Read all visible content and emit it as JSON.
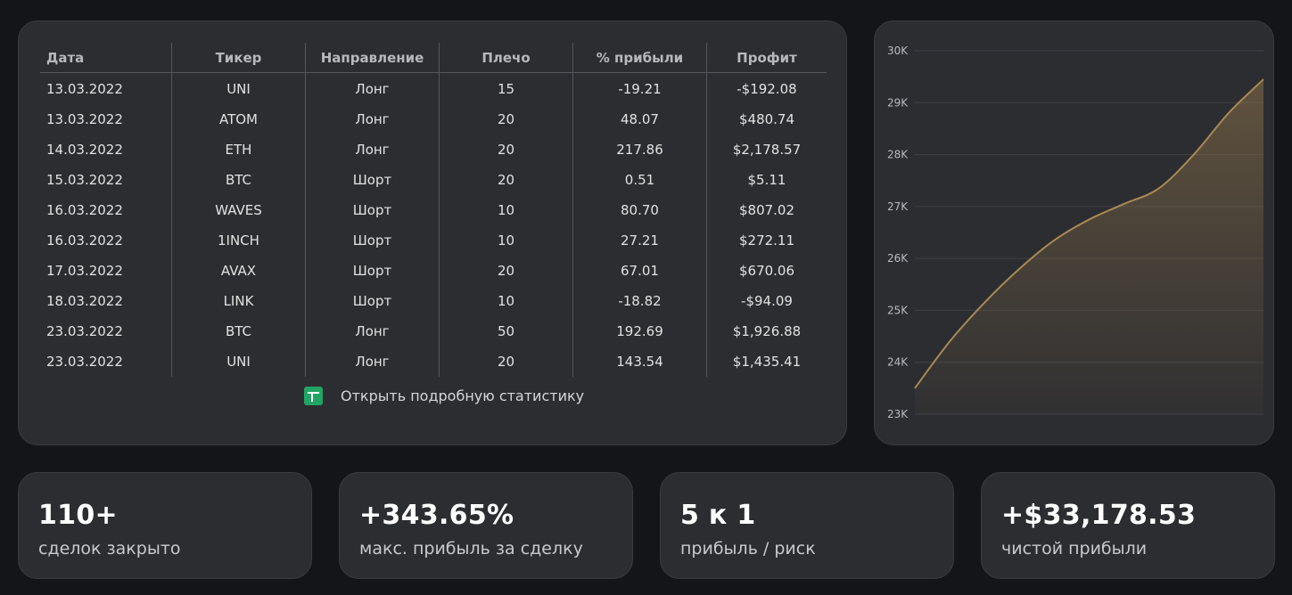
{
  "table": {
    "headers": [
      "Дата",
      "Тикер",
      "Направление",
      "Плечо",
      "% прибыли",
      "Профит"
    ],
    "rows": [
      [
        "13.03.2022",
        "UNI",
        "Лонг",
        "15",
        "-19.21",
        "-$192.08"
      ],
      [
        "13.03.2022",
        "ATOM",
        "Лонг",
        "20",
        "48.07",
        "$480.74"
      ],
      [
        "14.03.2022",
        "ETH",
        "Лонг",
        "20",
        "217.86",
        "$2,178.57"
      ],
      [
        "15.03.2022",
        "BTC",
        "Шорт",
        "20",
        "0.51",
        "$5.11"
      ],
      [
        "16.03.2022",
        "WAVES",
        "Шорт",
        "10",
        "80.70",
        "$807.02"
      ],
      [
        "16.03.2022",
        "1INCH",
        "Шорт",
        "10",
        "27.21",
        "$272.11"
      ],
      [
        "17.03.2022",
        "AVAX",
        "Шорт",
        "20",
        "67.01",
        "$670.06"
      ],
      [
        "18.03.2022",
        "LINK",
        "Шорт",
        "10",
        "-18.82",
        "-$94.09"
      ],
      [
        "23.03.2022",
        "BTC",
        "Лонг",
        "50",
        "192.69",
        "$1,926.88"
      ],
      [
        "23.03.2022",
        "UNI",
        "Лонг",
        "20",
        "143.54",
        "$1,435.41"
      ]
    ]
  },
  "stats_link": {
    "label": "Открыть подробную статистику",
    "icon": "google-sheets-icon"
  },
  "chart_data": {
    "type": "area",
    "y_ticks": [
      "30K",
      "29K",
      "28K",
      "27K",
      "26K",
      "25K",
      "24K",
      "23K"
    ],
    "ylim": [
      23000,
      30000
    ],
    "x": [
      0,
      0.1,
      0.2,
      0.3,
      0.4,
      0.5,
      0.6,
      0.7,
      0.8,
      0.9,
      1.0
    ],
    "values": [
      23500,
      24400,
      25150,
      25800,
      26350,
      26750,
      27050,
      27350,
      28000,
      28800,
      29450
    ],
    "grid": true,
    "colors": {
      "line": "#a88a55",
      "fill": "#8a7048"
    }
  },
  "cards": [
    {
      "value": "110+",
      "label": "сделок закрыто"
    },
    {
      "value": "+343.65%",
      "label": "макс. прибыль за сделку"
    },
    {
      "value": "5 к 1",
      "label": "прибыль / риск"
    },
    {
      "value": "+$33,178.53",
      "label": "чистой прибыли"
    }
  ]
}
